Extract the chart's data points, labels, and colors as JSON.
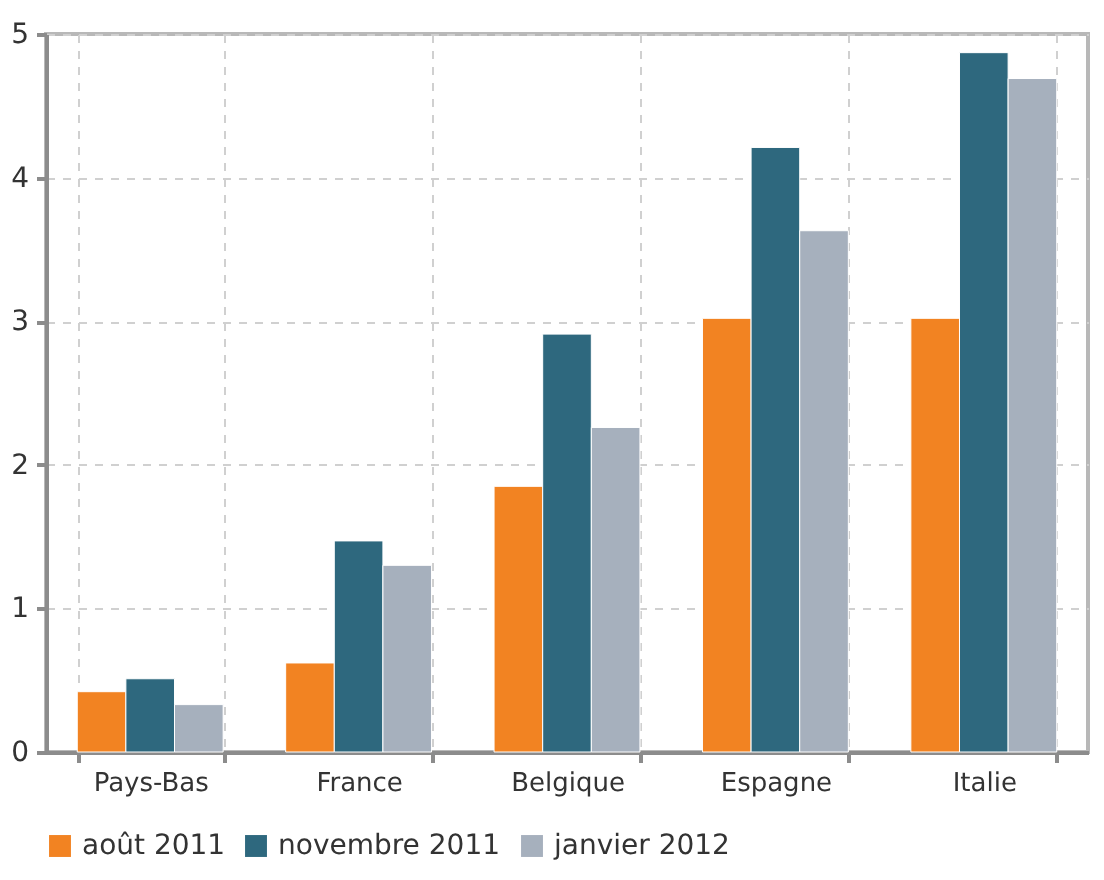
{
  "chart_data": {
    "type": "bar",
    "categories": [
      "Pays-Bas",
      "France",
      "Belgique",
      "Espagne",
      "Italie"
    ],
    "series": [
      {
        "name": "août 2011",
        "color": "#f28322",
        "values": [
          0.42,
          0.62,
          1.85,
          3.02,
          3.02
        ]
      },
      {
        "name": "novembre 2011",
        "color": "#2e687e",
        "values": [
          0.51,
          1.47,
          2.91,
          4.21,
          4.87
        ]
      },
      {
        "name": "janvier 2012",
        "color": "#a6b0bd",
        "values": [
          0.33,
          1.3,
          2.26,
          3.63,
          4.69
        ]
      }
    ],
    "ylim": [
      0,
      5
    ],
    "yticks": [
      0,
      1,
      2,
      3,
      4,
      5
    ],
    "grid": true,
    "legend": "bottom"
  }
}
